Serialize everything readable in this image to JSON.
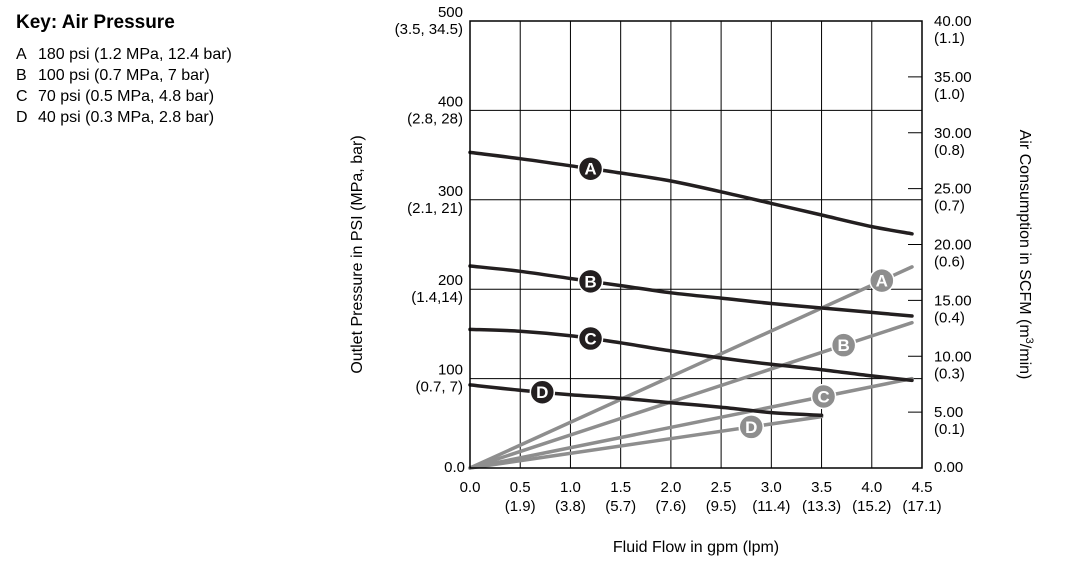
{
  "key": {
    "title": "Key: Air Pressure",
    "items": [
      {
        "letter": "A",
        "text": "180 psi (1.2 MPa, 12.4 bar)"
      },
      {
        "letter": "B",
        "text": "100 psi (0.7 MPa, 7 bar)"
      },
      {
        "letter": "C",
        "text": "70 psi (0.5 MPa, 4.8 bar)"
      },
      {
        "letter": "D",
        "text": "40 psi (0.3 MPa, 2.8 bar)"
      }
    ]
  },
  "chart_data": {
    "type": "line",
    "xlabel": "Fluid Flow in gpm (lpm)",
    "ylabel_left": "Outlet Pressure in PSI (MPa, bar)",
    "ylabel_right_main": "Air Consumption in SCFM (m",
    "ylabel_right_sup": "3",
    "ylabel_right_end": "/min)",
    "xlim": [
      0,
      4.5
    ],
    "ylim_left": [
      0,
      500
    ],
    "ylim_right": [
      0,
      40
    ],
    "grid": true,
    "x_ticks": [
      {
        "value": 0.0,
        "label": "0.0",
        "sub": ""
      },
      {
        "value": 0.5,
        "label": "0.5",
        "sub": "(1.9)"
      },
      {
        "value": 1.0,
        "label": "1.0",
        "sub": "(3.8)"
      },
      {
        "value": 1.5,
        "label": "1.5",
        "sub": "(5.7)"
      },
      {
        "value": 2.0,
        "label": "2.0",
        "sub": "(7.6)"
      },
      {
        "value": 2.5,
        "label": "2.5",
        "sub": "(9.5)"
      },
      {
        "value": 3.0,
        "label": "3.0",
        "sub": "(11.4)"
      },
      {
        "value": 3.5,
        "label": "3.5",
        "sub": "(13.3)"
      },
      {
        "value": 4.0,
        "label": "4.0",
        "sub": "(15.2)"
      },
      {
        "value": 4.5,
        "label": "4.5",
        "sub": "(17.1)"
      }
    ],
    "y_left_ticks": [
      {
        "value": 0,
        "label": "0.0",
        "sub": ""
      },
      {
        "value": 100,
        "label": "100",
        "sub": "(0.7, 7)"
      },
      {
        "value": 200,
        "label": "200",
        "sub": "(1.4,14)"
      },
      {
        "value": 300,
        "label": "300",
        "sub": "(2.1, 21)"
      },
      {
        "value": 400,
        "label": "400",
        "sub": "(2.8, 28)"
      },
      {
        "value": 500,
        "label": "500",
        "sub": "(3.5, 34.5)"
      }
    ],
    "y_right_ticks": [
      {
        "value": 0,
        "label": "0.00",
        "sub": ""
      },
      {
        "value": 5,
        "label": "5.00",
        "sub": "(0.1)"
      },
      {
        "value": 10,
        "label": "10.00",
        "sub": "(0.3)"
      },
      {
        "value": 15,
        "label": "15.00",
        "sub": "(0.4)"
      },
      {
        "value": 20,
        "label": "20.00",
        "sub": "(0.6)"
      },
      {
        "value": 25,
        "label": "25.00",
        "sub": "(0.7)"
      },
      {
        "value": 30,
        "label": "30.00",
        "sub": "(0.8)"
      },
      {
        "value": 35,
        "label": "35.00",
        "sub": "(1.0)"
      },
      {
        "value": 40,
        "label": "40.00",
        "sub": "(1.1)"
      }
    ],
    "pressure_curves": [
      {
        "name": "A",
        "color": "#231f20",
        "label_x": 1.2,
        "x": [
          0,
          0.5,
          1.0,
          1.5,
          2.0,
          2.5,
          3.0,
          3.5,
          4.0,
          4.4
        ],
        "y": [
          353,
          346,
          338,
          330,
          321,
          309,
          296,
          283,
          270,
          262
        ]
      },
      {
        "name": "B",
        "color": "#231f20",
        "label_x": 1.2,
        "x": [
          0,
          0.5,
          1.0,
          1.5,
          2.0,
          2.5,
          3.0,
          3.5,
          4.0,
          4.4
        ],
        "y": [
          226,
          220,
          212,
          204,
          196,
          190,
          184,
          179,
          174,
          170
        ]
      },
      {
        "name": "C",
        "color": "#231f20",
        "label_x": 1.2,
        "x": [
          0,
          0.5,
          1.0,
          1.5,
          2.0,
          2.5,
          3.0,
          3.5,
          4.0,
          4.4
        ],
        "y": [
          155,
          153,
          148,
          140,
          131,
          123,
          116,
          110,
          103,
          98
        ]
      },
      {
        "name": "D",
        "color": "#231f20",
        "label_x": 0.72,
        "x": [
          0,
          0.5,
          1.0,
          1.5,
          2.0,
          2.5,
          3.0,
          3.5
        ],
        "y": [
          93,
          87,
          82,
          78,
          73,
          68,
          62,
          59
        ]
      }
    ],
    "air_consumption_curves": [
      {
        "name": "A",
        "color": "#8e8e8e",
        "label_x": 4.1,
        "x": [
          0,
          4.4
        ],
        "y": [
          0,
          18
        ]
      },
      {
        "name": "B",
        "color": "#8e8e8e",
        "label_x": 3.72,
        "x": [
          0,
          4.4
        ],
        "y": [
          0,
          13
        ]
      },
      {
        "name": "C",
        "color": "#8e8e8e",
        "label_x": 3.52,
        "x": [
          0,
          4.4
        ],
        "y": [
          0,
          8
        ]
      },
      {
        "name": "D",
        "color": "#8e8e8e",
        "label_x": 2.8,
        "x": [
          0,
          3.5
        ],
        "y": [
          0,
          4.6
        ]
      }
    ]
  }
}
